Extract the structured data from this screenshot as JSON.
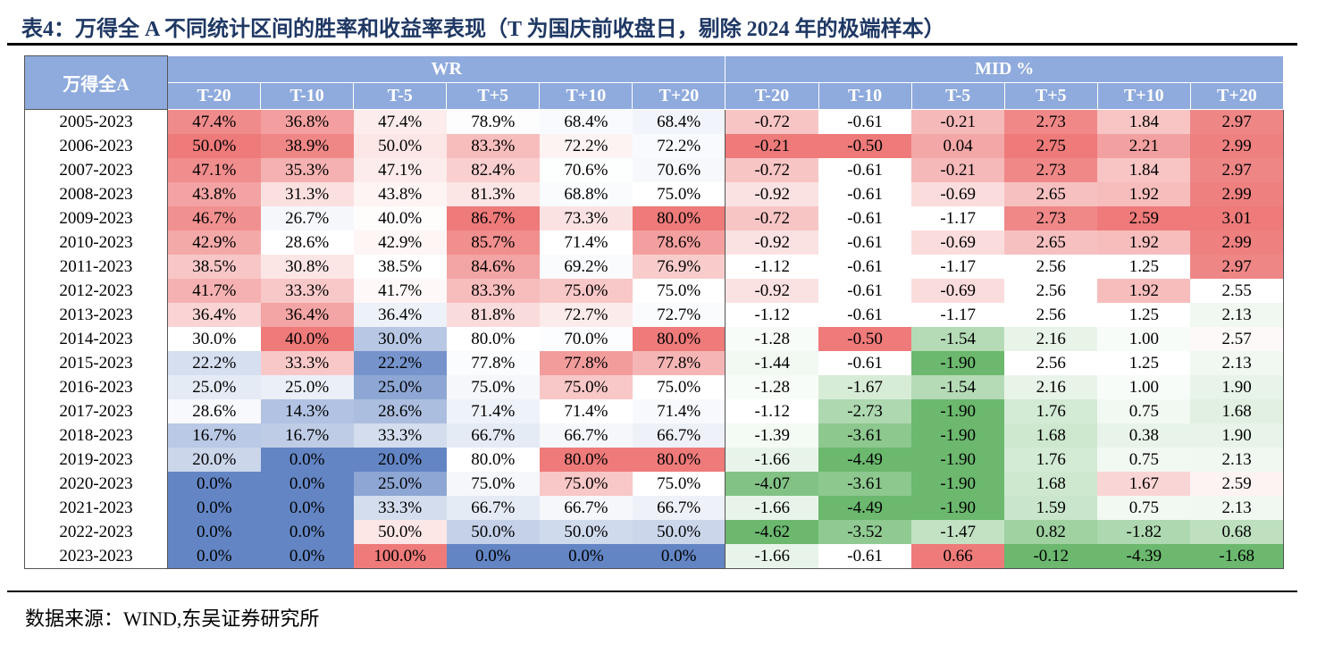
{
  "title": "表4：万得全 A 不同统计区间的胜率和收益率表现（T 为国庆前收盘日，剔除 2024 年的极端样本）",
  "source": "数据来源：WIND,东吴证券研究所",
  "table": {
    "corner": "万得全A",
    "group_wr": "WR",
    "group_mid": "MID %",
    "columns": [
      "T-20",
      "T-10",
      "T-5",
      "T+5",
      "T+10",
      "T+20"
    ],
    "colors": {
      "header": "#8faadc",
      "low_wr": "#6385c4",
      "low_mid": "#6bb86e",
      "high": "#ee7a7a",
      "mid": "#ffffff"
    },
    "rows": [
      {
        "period": "2005-2023",
        "wr": [
          "47.4%",
          "36.8%",
          "47.4%",
          "78.9%",
          "68.4%",
          "68.4%"
        ],
        "mid": [
          "-0.72",
          "-0.61",
          "-0.21",
          "2.73",
          "1.84",
          "2.97"
        ]
      },
      {
        "period": "2006-2023",
        "wr": [
          "50.0%",
          "38.9%",
          "50.0%",
          "83.3%",
          "72.2%",
          "72.2%"
        ],
        "mid": [
          "-0.21",
          "-0.50",
          "0.04",
          "2.75",
          "2.21",
          "2.99"
        ]
      },
      {
        "period": "2007-2023",
        "wr": [
          "47.1%",
          "35.3%",
          "47.1%",
          "82.4%",
          "70.6%",
          "70.6%"
        ],
        "mid": [
          "-0.72",
          "-0.61",
          "-0.21",
          "2.73",
          "1.84",
          "2.97"
        ]
      },
      {
        "period": "2008-2023",
        "wr": [
          "43.8%",
          "31.3%",
          "43.8%",
          "81.3%",
          "68.8%",
          "75.0%"
        ],
        "mid": [
          "-0.92",
          "-0.61",
          "-0.69",
          "2.65",
          "1.92",
          "2.99"
        ]
      },
      {
        "period": "2009-2023",
        "wr": [
          "46.7%",
          "26.7%",
          "40.0%",
          "86.7%",
          "73.3%",
          "80.0%"
        ],
        "mid": [
          "-0.72",
          "-0.61",
          "-1.17",
          "2.73",
          "2.59",
          "3.01"
        ]
      },
      {
        "period": "2010-2023",
        "wr": [
          "42.9%",
          "28.6%",
          "42.9%",
          "85.7%",
          "71.4%",
          "78.6%"
        ],
        "mid": [
          "-0.92",
          "-0.61",
          "-0.69",
          "2.65",
          "1.92",
          "2.99"
        ]
      },
      {
        "period": "2011-2023",
        "wr": [
          "38.5%",
          "30.8%",
          "38.5%",
          "84.6%",
          "69.2%",
          "76.9%"
        ],
        "mid": [
          "-1.12",
          "-0.61",
          "-1.17",
          "2.56",
          "1.25",
          "2.97"
        ]
      },
      {
        "period": "2012-2023",
        "wr": [
          "41.7%",
          "33.3%",
          "41.7%",
          "83.3%",
          "75.0%",
          "75.0%"
        ],
        "mid": [
          "-0.92",
          "-0.61",
          "-0.69",
          "2.56",
          "1.92",
          "2.55"
        ]
      },
      {
        "period": "2013-2023",
        "wr": [
          "36.4%",
          "36.4%",
          "36.4%",
          "81.8%",
          "72.7%",
          "72.7%"
        ],
        "mid": [
          "-1.12",
          "-0.61",
          "-1.17",
          "2.56",
          "1.25",
          "2.13"
        ]
      },
      {
        "period": "2014-2023",
        "wr": [
          "30.0%",
          "40.0%",
          "30.0%",
          "80.0%",
          "70.0%",
          "80.0%"
        ],
        "mid": [
          "-1.28",
          "-0.50",
          "-1.54",
          "2.16",
          "1.00",
          "2.57"
        ]
      },
      {
        "period": "2015-2023",
        "wr": [
          "22.2%",
          "33.3%",
          "22.2%",
          "77.8%",
          "77.8%",
          "77.8%"
        ],
        "mid": [
          "-1.44",
          "-0.61",
          "-1.90",
          "2.56",
          "1.25",
          "2.13"
        ]
      },
      {
        "period": "2016-2023",
        "wr": [
          "25.0%",
          "25.0%",
          "25.0%",
          "75.0%",
          "75.0%",
          "75.0%"
        ],
        "mid": [
          "-1.28",
          "-1.67",
          "-1.54",
          "2.16",
          "1.00",
          "1.90"
        ]
      },
      {
        "period": "2017-2023",
        "wr": [
          "28.6%",
          "14.3%",
          "28.6%",
          "71.4%",
          "71.4%",
          "71.4%"
        ],
        "mid": [
          "-1.12",
          "-2.73",
          "-1.90",
          "1.76",
          "0.75",
          "1.68"
        ]
      },
      {
        "period": "2018-2023",
        "wr": [
          "16.7%",
          "16.7%",
          "33.3%",
          "66.7%",
          "66.7%",
          "66.7%"
        ],
        "mid": [
          "-1.39",
          "-3.61",
          "-1.90",
          "1.68",
          "0.38",
          "1.90"
        ]
      },
      {
        "period": "2019-2023",
        "wr": [
          "20.0%",
          "0.0%",
          "20.0%",
          "80.0%",
          "80.0%",
          "80.0%"
        ],
        "mid": [
          "-1.66",
          "-4.49",
          "-1.90",
          "1.76",
          "0.75",
          "2.13"
        ]
      },
      {
        "period": "2020-2023",
        "wr": [
          "0.0%",
          "0.0%",
          "25.0%",
          "75.0%",
          "75.0%",
          "75.0%"
        ],
        "mid": [
          "-4.07",
          "-3.61",
          "-1.90",
          "1.68",
          "1.67",
          "2.59"
        ]
      },
      {
        "period": "2021-2023",
        "wr": [
          "0.0%",
          "0.0%",
          "33.3%",
          "66.7%",
          "66.7%",
          "66.7%"
        ],
        "mid": [
          "-1.66",
          "-4.49",
          "-1.90",
          "1.59",
          "0.75",
          "2.13"
        ]
      },
      {
        "period": "2022-2023",
        "wr": [
          "0.0%",
          "0.0%",
          "50.0%",
          "50.0%",
          "50.0%",
          "50.0%"
        ],
        "mid": [
          "-4.62",
          "-3.52",
          "-1.47",
          "0.82",
          "-1.82",
          "0.68"
        ]
      },
      {
        "period": "2023-2023",
        "wr": [
          "0.0%",
          "0.0%",
          "100.0%",
          "0.0%",
          "0.0%",
          "0.0%"
        ],
        "mid": [
          "-1.66",
          "-0.61",
          "0.66",
          "-0.12",
          "-4.39",
          "-1.68"
        ]
      }
    ]
  }
}
